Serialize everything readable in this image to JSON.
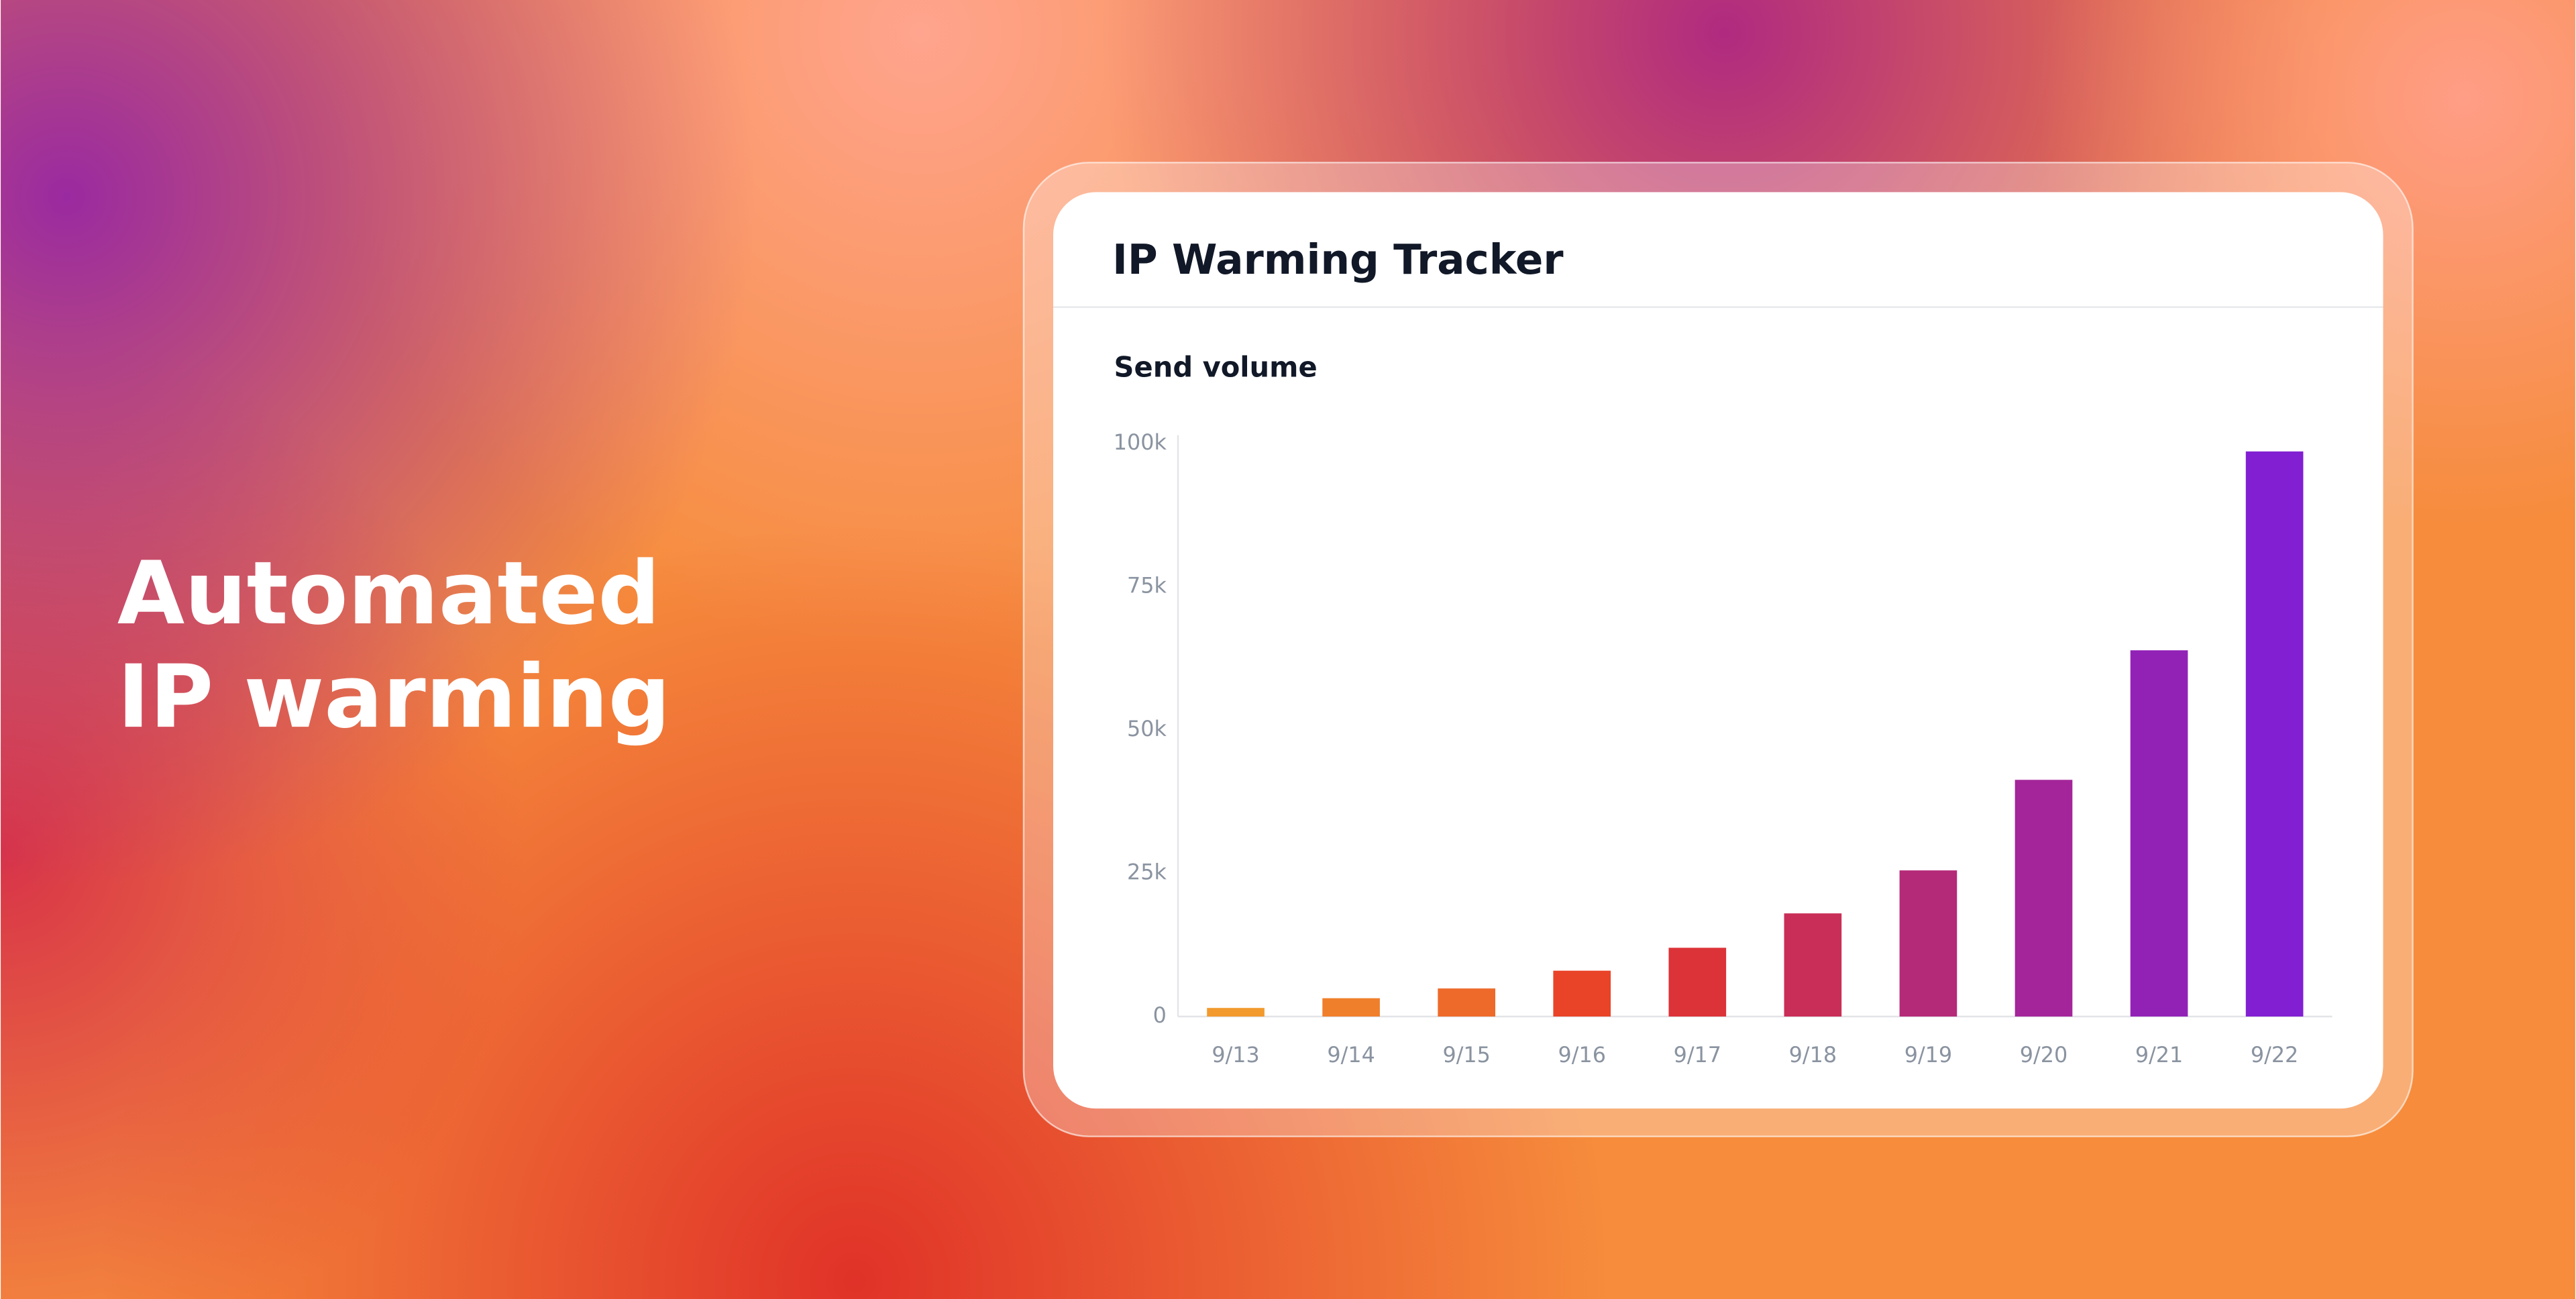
{
  "headline": [
    "Automated",
    "IP warming"
  ],
  "chart_data": {
    "type": "bar",
    "title": "IP Warming Tracker",
    "subtitle": "Send volume",
    "categories": [
      "9/13",
      "9/14",
      "9/15",
      "9/16",
      "9/17",
      "9/18",
      "9/19",
      "9/20",
      "9/21",
      "9/22"
    ],
    "values": [
      1500,
      3200,
      4900,
      8000,
      12000,
      18000,
      25500,
      41300,
      63900,
      98600
    ],
    "colors": [
      "#f29a2e",
      "#f07f2c",
      "#ee6a2a",
      "#e94428",
      "#dc3338",
      "#c92e58",
      "#b52a78",
      "#a4259a",
      "#9222b6",
      "#821fd2"
    ],
    "ylim": [
      0,
      100000
    ],
    "yticks": [
      {
        "value": 0,
        "label": "0"
      },
      {
        "value": 25000,
        "label": "25k"
      },
      {
        "value": 50000,
        "label": "50k"
      },
      {
        "value": 75000,
        "label": "75k"
      },
      {
        "value": 100000,
        "label": "100k"
      }
    ],
    "grid": false
  }
}
